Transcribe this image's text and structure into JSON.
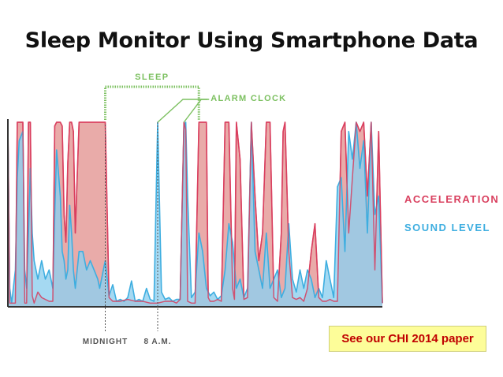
{
  "title": "Sleep Monitor Using Smartphone Data",
  "note": "See our CHI 2014 paper",
  "colors": {
    "acceleration": "#d9405f",
    "acceleration_fill": "#e8a6a4",
    "sound": "#3eaee0",
    "sound_fill": "#8fd0ef",
    "annotation": "#7cc060",
    "axis": "#333333"
  },
  "chart_data": {
    "type": "area",
    "title": "",
    "xlabel": "",
    "ylabel": "",
    "ylim": [
      0,
      100
    ],
    "legend_position": "right",
    "x_tick_labels": [
      {
        "x": 26,
        "label": "MIDNIGHT"
      },
      {
        "x": 40,
        "label": "8 A.M."
      }
    ],
    "annotations": {
      "sleep": {
        "label": "SLEEP",
        "x_start": 26,
        "x_end": 51
      },
      "alarm_clock": {
        "label": "ALARM CLOCK",
        "x": [
          40,
          47
        ]
      }
    },
    "series": [
      {
        "name": "ACCELERATION",
        "points": [
          [
            0,
            100
          ],
          [
            0.5,
            2
          ],
          [
            1,
            2
          ],
          [
            2,
            2
          ],
          [
            2.5,
            100
          ],
          [
            3,
            100
          ],
          [
            4,
            100
          ],
          [
            4.5,
            2
          ],
          [
            5,
            2
          ],
          [
            5.5,
            100
          ],
          [
            6,
            100
          ],
          [
            6.5,
            6
          ],
          [
            7,
            2
          ],
          [
            8,
            8
          ],
          [
            9,
            5
          ],
          [
            10,
            4
          ],
          [
            11,
            3
          ],
          [
            12,
            3
          ],
          [
            12.5,
            98
          ],
          [
            13,
            100
          ],
          [
            14,
            100
          ],
          [
            14.5,
            98
          ],
          [
            15,
            50
          ],
          [
            15.5,
            35
          ],
          [
            16,
            78
          ],
          [
            16.5,
            100
          ],
          [
            17,
            100
          ],
          [
            17.5,
            95
          ],
          [
            18,
            40
          ],
          [
            19,
            100
          ],
          [
            20,
            100
          ],
          [
            21,
            100
          ],
          [
            22,
            100
          ],
          [
            23,
            100
          ],
          [
            24,
            100
          ],
          [
            24.5,
            100
          ],
          [
            25,
            100
          ],
          [
            25.5,
            100
          ],
          [
            26,
            100
          ],
          [
            27,
            5
          ],
          [
            28,
            3
          ],
          [
            30,
            3
          ],
          [
            32,
            4
          ],
          [
            34,
            3
          ],
          [
            36,
            3
          ],
          [
            38,
            2
          ],
          [
            40,
            2
          ],
          [
            42,
            3
          ],
          [
            44,
            3
          ],
          [
            45,
            2
          ],
          [
            46,
            4
          ],
          [
            47,
            100
          ],
          [
            47.5,
            96
          ],
          [
            48,
            3
          ],
          [
            49,
            2
          ],
          [
            50,
            2
          ],
          [
            51,
            100
          ],
          [
            52,
            100
          ],
          [
            53,
            100
          ],
          [
            53.5,
            5
          ],
          [
            54,
            3
          ],
          [
            55,
            3
          ],
          [
            56,
            4
          ],
          [
            57,
            3
          ],
          [
            58,
            100
          ],
          [
            59,
            100
          ],
          [
            60,
            10
          ],
          [
            60.5,
            4
          ],
          [
            61,
            100
          ],
          [
            62,
            80
          ],
          [
            63,
            4
          ],
          [
            64,
            5
          ],
          [
            65,
            100
          ],
          [
            66,
            60
          ],
          [
            67,
            25
          ],
          [
            68,
            40
          ],
          [
            69,
            100
          ],
          [
            70,
            100
          ],
          [
            71,
            5
          ],
          [
            72,
            3
          ],
          [
            73,
            40
          ],
          [
            73.5,
            95
          ],
          [
            74,
            100
          ],
          [
            75,
            30
          ],
          [
            76,
            5
          ],
          [
            77,
            4
          ],
          [
            78,
            5
          ],
          [
            79,
            3
          ],
          [
            80,
            10
          ],
          [
            81,
            30
          ],
          [
            82,
            45
          ],
          [
            83,
            5
          ],
          [
            84,
            3
          ],
          [
            85,
            3
          ],
          [
            86,
            4
          ],
          [
            87,
            3
          ],
          [
            88,
            3
          ],
          [
            89,
            95
          ],
          [
            90,
            100
          ],
          [
            91,
            40
          ],
          [
            92,
            70
          ],
          [
            93,
            100
          ],
          [
            94,
            95
          ],
          [
            95,
            100
          ],
          [
            96,
            60
          ],
          [
            97,
            100
          ],
          [
            98,
            20
          ],
          [
            99,
            95
          ],
          [
            100,
            2
          ]
        ]
      },
      {
        "name": "SOUND LEVEL",
        "points": [
          [
            0,
            95
          ],
          [
            0.5,
            10
          ],
          [
            1,
            2
          ],
          [
            2,
            20
          ],
          [
            2.5,
            70
          ],
          [
            3,
            90
          ],
          [
            4,
            95
          ],
          [
            4.5,
            20
          ],
          [
            5,
            10
          ],
          [
            5.5,
            40
          ],
          [
            6,
            75
          ],
          [
            6.5,
            40
          ],
          [
            7,
            25
          ],
          [
            8,
            15
          ],
          [
            9,
            25
          ],
          [
            10,
            15
          ],
          [
            11,
            20
          ],
          [
            12,
            10
          ],
          [
            12.5,
            50
          ],
          [
            13,
            85
          ],
          [
            14,
            60
          ],
          [
            14.5,
            30
          ],
          [
            15,
            25
          ],
          [
            15.5,
            15
          ],
          [
            16,
            20
          ],
          [
            16.5,
            55
          ],
          [
            17,
            40
          ],
          [
            17.5,
            20
          ],
          [
            18,
            10
          ],
          [
            19,
            30
          ],
          [
            20,
            30
          ],
          [
            21,
            20
          ],
          [
            22,
            25
          ],
          [
            23,
            20
          ],
          [
            24,
            15
          ],
          [
            24.5,
            10
          ],
          [
            25,
            15
          ],
          [
            25.5,
            20
          ],
          [
            26,
            25
          ],
          [
            27,
            6
          ],
          [
            28,
            12
          ],
          [
            29,
            3
          ],
          [
            30,
            4
          ],
          [
            31,
            3
          ],
          [
            32,
            5
          ],
          [
            33,
            14
          ],
          [
            34,
            3
          ],
          [
            35,
            4
          ],
          [
            36,
            3
          ],
          [
            37,
            10
          ],
          [
            38,
            4
          ],
          [
            39,
            3
          ],
          [
            40,
            100
          ],
          [
            41,
            8
          ],
          [
            42,
            4
          ],
          [
            43,
            5
          ],
          [
            44,
            3
          ],
          [
            45,
            4
          ],
          [
            46,
            4
          ],
          [
            47,
            98
          ],
          [
            47.5,
            100
          ],
          [
            48,
            60
          ],
          [
            49,
            5
          ],
          [
            50,
            8
          ],
          [
            51,
            40
          ],
          [
            52,
            30
          ],
          [
            53,
            10
          ],
          [
            54,
            6
          ],
          [
            55,
            8
          ],
          [
            56,
            4
          ],
          [
            57,
            6
          ],
          [
            58,
            20
          ],
          [
            59,
            45
          ],
          [
            60,
            35
          ],
          [
            61,
            10
          ],
          [
            62,
            15
          ],
          [
            63,
            5
          ],
          [
            64,
            10
          ],
          [
            65,
            100
          ],
          [
            66,
            30
          ],
          [
            67,
            20
          ],
          [
            68,
            10
          ],
          [
            69,
            40
          ],
          [
            70,
            10
          ],
          [
            71,
            15
          ],
          [
            72,
            20
          ],
          [
            73,
            5
          ],
          [
            74,
            10
          ],
          [
            75,
            45
          ],
          [
            76,
            15
          ],
          [
            77,
            8
          ],
          [
            78,
            20
          ],
          [
            79,
            10
          ],
          [
            80,
            20
          ],
          [
            81,
            15
          ],
          [
            82,
            5
          ],
          [
            83,
            10
          ],
          [
            84,
            5
          ],
          [
            85,
            25
          ],
          [
            86,
            15
          ],
          [
            87,
            5
          ],
          [
            88,
            65
          ],
          [
            89,
            70
          ],
          [
            90,
            30
          ],
          [
            91,
            95
          ],
          [
            92,
            80
          ],
          [
            93,
            100
          ],
          [
            94,
            75
          ],
          [
            95,
            90
          ],
          [
            96,
            40
          ],
          [
            97,
            100
          ],
          [
            98,
            50
          ],
          [
            99,
            60
          ],
          [
            100,
            2
          ]
        ]
      }
    ]
  }
}
